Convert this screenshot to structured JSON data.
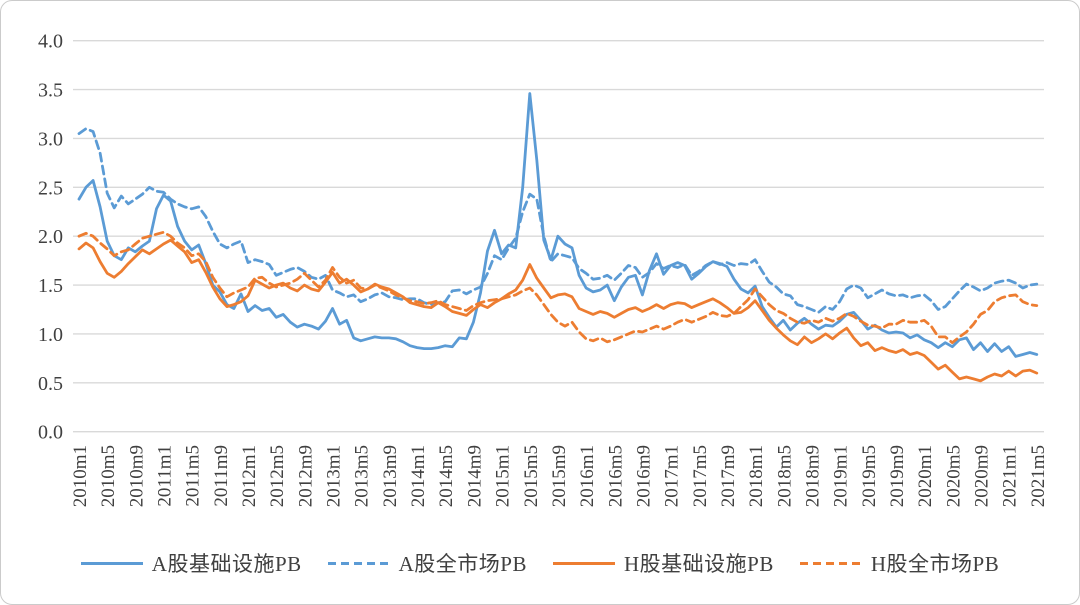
{
  "chart_data": {
    "type": "line",
    "title": "",
    "xlabel": "",
    "ylabel": "",
    "x_frequency": "monthly",
    "x_start": "2010m1",
    "x_end": "2021m5",
    "n_points": 137,
    "ylim": [
      0.0,
      4.0
    ],
    "y_tick_labels": [
      "0.0",
      "0.5",
      "1.0",
      "1.5",
      "2.0",
      "2.5",
      "3.0",
      "3.5",
      "4.0"
    ],
    "x_tick_labels": [
      "2010m1",
      "2010m5",
      "2010m9",
      "2011m1",
      "2011m5",
      "2011m9",
      "2012m1",
      "2012m5",
      "2012m9",
      "2013m1",
      "2013m5",
      "2013m9",
      "2014m1",
      "2014m5",
      "2014m9",
      "2015m1",
      "2015m5",
      "2015m9",
      "2016m1",
      "2016m5",
      "2016m9",
      "2017m1",
      "2017m5",
      "2017m9",
      "2018m1",
      "2018m5",
      "2018m9",
      "2019m1",
      "2019m5",
      "2019m9",
      "2020m1",
      "2020m5",
      "2020m9",
      "2021m1",
      "2021m5"
    ],
    "x_tick_every_n_months": 4,
    "grid": "horizontal",
    "gridline_color": "#d9d9d9",
    "axis_text_color": "#404040",
    "legend_position": "bottom",
    "series": [
      {
        "name": "A股基础设施PB",
        "color": "#5B9BD5",
        "style": "solid",
        "values": [
          2.38,
          2.5,
          2.57,
          2.3,
          1.95,
          1.8,
          1.76,
          1.88,
          1.84,
          1.9,
          1.95,
          2.28,
          2.42,
          2.36,
          2.1,
          1.95,
          1.86,
          1.91,
          1.72,
          1.5,
          1.43,
          1.3,
          1.26,
          1.41,
          1.23,
          1.29,
          1.24,
          1.26,
          1.17,
          1.2,
          1.12,
          1.07,
          1.1,
          1.08,
          1.05,
          1.13,
          1.26,
          1.1,
          1.14,
          0.96,
          0.93,
          0.95,
          0.97,
          0.96,
          0.96,
          0.95,
          0.92,
          0.88,
          0.86,
          0.85,
          0.85,
          0.86,
          0.88,
          0.87,
          0.96,
          0.95,
          1.12,
          1.42,
          1.85,
          2.06,
          1.82,
          1.91,
          1.88,
          2.5,
          3.46,
          2.78,
          1.96,
          1.76,
          2.0,
          1.92,
          1.88,
          1.6,
          1.47,
          1.43,
          1.45,
          1.5,
          1.34,
          1.48,
          1.58,
          1.6,
          1.4,
          1.65,
          1.82,
          1.61,
          1.7,
          1.73,
          1.7,
          1.56,
          1.62,
          1.69,
          1.74,
          1.72,
          1.69,
          1.56,
          1.46,
          1.42,
          1.49,
          1.28,
          1.17,
          1.07,
          1.14,
          1.04,
          1.11,
          1.16,
          1.1,
          1.05,
          1.09,
          1.08,
          1.13,
          1.2,
          1.22,
          1.14,
          1.05,
          1.09,
          1.04,
          1.01,
          1.02,
          1.01,
          0.96,
          0.99,
          0.94,
          0.91,
          0.86,
          0.91,
          0.87,
          0.94,
          0.96,
          0.84,
          0.91,
          0.82,
          0.9,
          0.82,
          0.87,
          0.77,
          0.79,
          0.81,
          0.79
        ]
      },
      {
        "name": "A股全市场PB",
        "color": "#5B9BD5",
        "style": "dashed",
        "values": [
          3.05,
          3.1,
          3.07,
          2.85,
          2.44,
          2.29,
          2.41,
          2.33,
          2.38,
          2.43,
          2.5,
          2.46,
          2.45,
          2.38,
          2.33,
          2.3,
          2.28,
          2.3,
          2.2,
          2.05,
          1.92,
          1.88,
          1.92,
          1.95,
          1.73,
          1.76,
          1.74,
          1.71,
          1.6,
          1.63,
          1.66,
          1.68,
          1.64,
          1.58,
          1.56,
          1.6,
          1.45,
          1.42,
          1.38,
          1.4,
          1.33,
          1.36,
          1.4,
          1.42,
          1.38,
          1.37,
          1.35,
          1.36,
          1.36,
          1.32,
          1.3,
          1.32,
          1.33,
          1.44,
          1.45,
          1.41,
          1.45,
          1.48,
          1.62,
          1.8,
          1.76,
          1.88,
          1.98,
          2.25,
          2.43,
          2.38,
          2.0,
          1.74,
          1.82,
          1.8,
          1.78,
          1.67,
          1.62,
          1.56,
          1.57,
          1.6,
          1.55,
          1.62,
          1.7,
          1.68,
          1.58,
          1.63,
          1.72,
          1.67,
          1.7,
          1.68,
          1.71,
          1.6,
          1.64,
          1.7,
          1.74,
          1.71,
          1.73,
          1.7,
          1.72,
          1.71,
          1.76,
          1.64,
          1.53,
          1.48,
          1.41,
          1.39,
          1.3,
          1.28,
          1.25,
          1.22,
          1.28,
          1.25,
          1.33,
          1.46,
          1.5,
          1.47,
          1.37,
          1.41,
          1.45,
          1.41,
          1.39,
          1.4,
          1.37,
          1.39,
          1.4,
          1.34,
          1.25,
          1.28,
          1.36,
          1.44,
          1.51,
          1.48,
          1.44,
          1.47,
          1.52,
          1.54,
          1.55,
          1.52,
          1.47,
          1.5,
          1.51
        ]
      },
      {
        "name": "H股基础设施PB",
        "color": "#ED7D31",
        "style": "solid",
        "values": [
          1.87,
          1.93,
          1.88,
          1.74,
          1.62,
          1.58,
          1.64,
          1.72,
          1.79,
          1.86,
          1.82,
          1.87,
          1.92,
          1.96,
          1.9,
          1.84,
          1.73,
          1.76,
          1.63,
          1.48,
          1.36,
          1.28,
          1.3,
          1.33,
          1.39,
          1.55,
          1.51,
          1.47,
          1.5,
          1.52,
          1.47,
          1.44,
          1.5,
          1.46,
          1.44,
          1.53,
          1.63,
          1.52,
          1.56,
          1.5,
          1.43,
          1.46,
          1.51,
          1.48,
          1.46,
          1.42,
          1.38,
          1.32,
          1.3,
          1.28,
          1.27,
          1.32,
          1.28,
          1.23,
          1.21,
          1.19,
          1.25,
          1.3,
          1.27,
          1.32,
          1.36,
          1.41,
          1.45,
          1.55,
          1.71,
          1.57,
          1.47,
          1.37,
          1.4,
          1.41,
          1.38,
          1.26,
          1.23,
          1.2,
          1.23,
          1.21,
          1.17,
          1.21,
          1.25,
          1.27,
          1.23,
          1.26,
          1.3,
          1.26,
          1.3,
          1.32,
          1.31,
          1.27,
          1.3,
          1.33,
          1.36,
          1.32,
          1.27,
          1.21,
          1.22,
          1.27,
          1.34,
          1.24,
          1.14,
          1.06,
          0.99,
          0.93,
          0.89,
          0.97,
          0.91,
          0.95,
          1.0,
          0.95,
          1.01,
          1.06,
          0.96,
          0.88,
          0.91,
          0.83,
          0.86,
          0.83,
          0.81,
          0.84,
          0.79,
          0.81,
          0.78,
          0.71,
          0.64,
          0.68,
          0.61,
          0.54,
          0.56,
          0.54,
          0.52,
          0.56,
          0.59,
          0.57,
          0.62,
          0.57,
          0.62,
          0.63,
          0.6
        ]
      },
      {
        "name": "H股全市场PB",
        "color": "#ED7D31",
        "style": "dashed",
        "values": [
          2.0,
          2.03,
          2.0,
          1.93,
          1.87,
          1.8,
          1.84,
          1.86,
          1.92,
          1.98,
          2.0,
          2.02,
          2.04,
          2.0,
          1.93,
          1.88,
          1.8,
          1.82,
          1.74,
          1.58,
          1.47,
          1.38,
          1.42,
          1.45,
          1.48,
          1.57,
          1.58,
          1.52,
          1.48,
          1.5,
          1.52,
          1.56,
          1.62,
          1.55,
          1.48,
          1.55,
          1.68,
          1.58,
          1.52,
          1.55,
          1.47,
          1.46,
          1.5,
          1.47,
          1.44,
          1.4,
          1.37,
          1.34,
          1.33,
          1.31,
          1.32,
          1.34,
          1.3,
          1.28,
          1.26,
          1.24,
          1.29,
          1.32,
          1.34,
          1.35,
          1.36,
          1.38,
          1.4,
          1.44,
          1.47,
          1.4,
          1.3,
          1.2,
          1.12,
          1.08,
          1.12,
          1.02,
          0.95,
          0.93,
          0.96,
          0.92,
          0.94,
          0.97,
          1.0,
          1.03,
          1.02,
          1.05,
          1.08,
          1.05,
          1.08,
          1.12,
          1.15,
          1.12,
          1.15,
          1.18,
          1.22,
          1.19,
          1.18,
          1.21,
          1.28,
          1.35,
          1.46,
          1.38,
          1.3,
          1.24,
          1.21,
          1.16,
          1.12,
          1.11,
          1.14,
          1.12,
          1.16,
          1.13,
          1.16,
          1.21,
          1.18,
          1.13,
          1.09,
          1.08,
          1.06,
          1.1,
          1.1,
          1.14,
          1.12,
          1.12,
          1.14,
          1.08,
          0.97,
          0.97,
          0.91,
          0.97,
          1.02,
          1.1,
          1.2,
          1.24,
          1.33,
          1.37,
          1.39,
          1.4,
          1.33,
          1.3,
          1.29
        ]
      }
    ]
  }
}
